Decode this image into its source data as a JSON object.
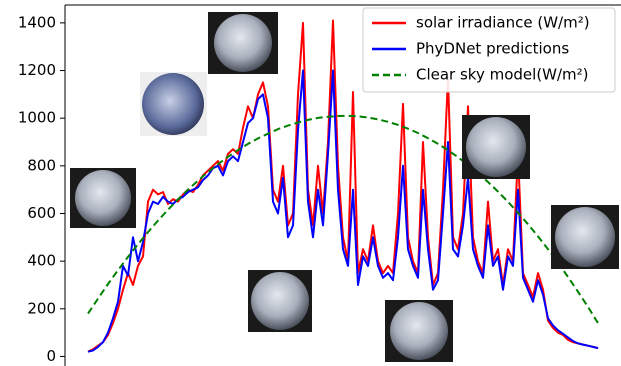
{
  "chart_data": {
    "type": "line",
    "ylim": [
      -40,
      1475
    ],
    "yticks": [
      0,
      200,
      400,
      600,
      800,
      1000,
      1200,
      1400
    ],
    "legend": "upper right",
    "series": [
      {
        "name": "solar irradiance (W/m²)",
        "color": "#ff0000",
        "style": "solid",
        "values": [
          20,
          30,
          45,
          60,
          90,
          140,
          200,
          280,
          350,
          300,
          380,
          420,
          650,
          700,
          680,
          690,
          640,
          660,
          650,
          680,
          700,
          690,
          720,
          760,
          780,
          800,
          820,
          780,
          850,
          870,
          850,
          960,
          1050,
          1000,
          1100,
          1150,
          1050,
          700,
          650,
          800,
          550,
          600,
          1100,
          1400,
          700,
          550,
          800,
          600,
          900,
          1410,
          800,
          500,
          400,
          1110,
          350,
          450,
          400,
          550,
          400,
          350,
          380,
          350,
          600,
          1060,
          500,
          400,
          350,
          900,
          500,
          300,
          350,
          700,
          1170,
          500,
          450,
          600,
          1050,
          500,
          400,
          350,
          650,
          400,
          450,
          300,
          450,
          400,
          850,
          350,
          300,
          250,
          350,
          280,
          150,
          120,
          100,
          90,
          70,
          60,
          55,
          50,
          45,
          40,
          35
        ]
      },
      {
        "name": "PhyDNet predictions",
        "color": "#0000ff",
        "style": "solid",
        "values": [
          20,
          25,
          40,
          60,
          100,
          160,
          230,
          380,
          340,
          500,
          400,
          480,
          600,
          650,
          640,
          670,
          650,
          640,
          660,
          670,
          690,
          700,
          710,
          740,
          760,
          790,
          800,
          760,
          820,
          840,
          820,
          900,
          980,
          1000,
          1080,
          1100,
          1000,
          650,
          600,
          750,
          500,
          550,
          950,
          1200,
          650,
          500,
          700,
          550,
          850,
          1200,
          700,
          450,
          380,
          700,
          300,
          420,
          380,
          500,
          380,
          330,
          350,
          320,
          500,
          800,
          450,
          380,
          330,
          700,
          450,
          280,
          320,
          600,
          900,
          450,
          420,
          550,
          750,
          450,
          380,
          330,
          550,
          380,
          420,
          280,
          420,
          380,
          700,
          330,
          280,
          230,
          320,
          260,
          160,
          130,
          110,
          95,
          80,
          65,
          55,
          50,
          45,
          40,
          35
        ]
      },
      {
        "name": "Clear sky model(W/m²)",
        "color": "#008000",
        "style": "dashed",
        "values": [
          180,
          243,
          304,
          362,
          418,
          471,
          522,
          570,
          616,
          659,
          700,
          738,
          774,
          807,
          838,
          866,
          892,
          915,
          935,
          954,
          969,
          982,
          993,
          1001,
          1006,
          1009,
          1010,
          1008,
          1003,
          995,
          985,
          972,
          956,
          938,
          916,
          892,
          866,
          836,
          804,
          770,
          732,
          692,
          649,
          603,
          555,
          504,
          450,
          393,
          334,
          272,
          208,
          140
        ]
      }
    ]
  }
}
